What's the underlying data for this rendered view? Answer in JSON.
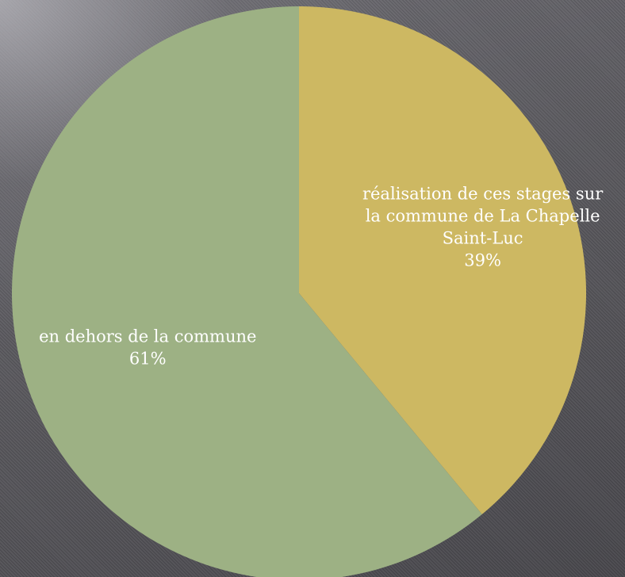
{
  "chart_data": {
    "type": "pie",
    "title": "",
    "start_angle_deg": 0,
    "direction": "clockwise",
    "slices": [
      {
        "label_lines": [
          "réalisation de ces stages sur",
          "la commune de La Chapelle",
          "Saint-Luc"
        ],
        "value": 39,
        "value_label": "39%",
        "color": "#cdb862"
      },
      {
        "label_lines": [
          "en dehors de la commune"
        ],
        "value": 61,
        "value_label": "61%",
        "color": "#9db184"
      }
    ]
  }
}
